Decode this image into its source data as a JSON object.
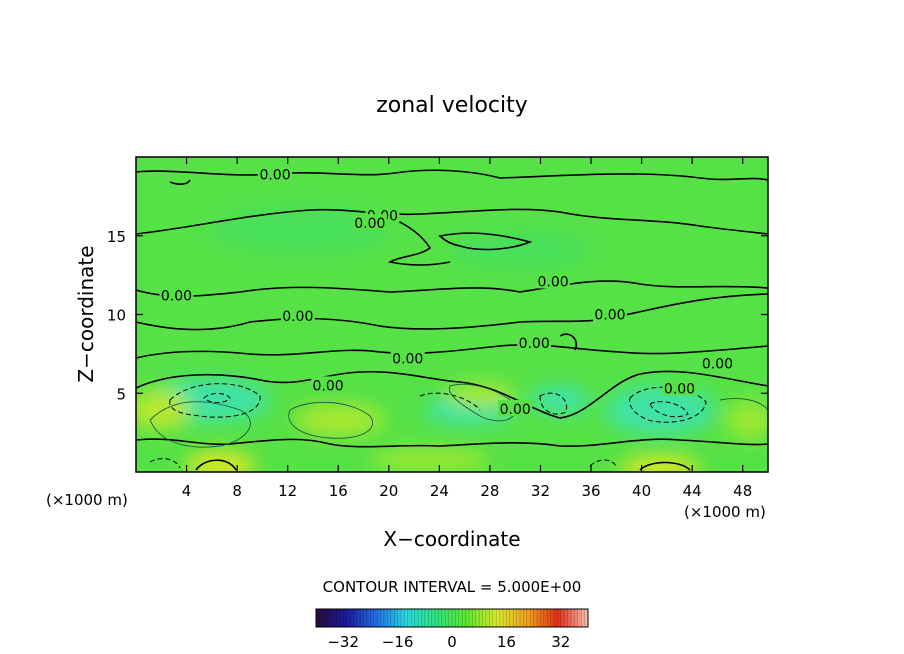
{
  "chart_data": {
    "type": "heatmap",
    "title": "zonal velocity",
    "xlabel": "X−coordinate",
    "ylabel": "Z−coordinate",
    "x_unit_left": "(×1000 m)",
    "x_unit_right": "(×1000 m)",
    "xlim": [
      0,
      50
    ],
    "ylim": [
      0,
      20
    ],
    "x_ticks": [
      4,
      8,
      12,
      16,
      20,
      24,
      28,
      32,
      36,
      40,
      44,
      48
    ],
    "y_ticks": [
      5,
      10,
      15
    ],
    "contour_interval_text": "CONTOUR INTERVAL = 5.000E+00",
    "contour_level_label": "0.00",
    "contour_labels": [
      {
        "x": 11,
        "y": 18.9
      },
      {
        "x": 19.5,
        "y": 16.3
      },
      {
        "x": 18.5,
        "y": 15.8
      },
      {
        "x": 33,
        "y": 12.1
      },
      {
        "x": 3.2,
        "y": 11.2
      },
      {
        "x": 12.8,
        "y": 9.9
      },
      {
        "x": 37.5,
        "y": 10.0
      },
      {
        "x": 31.5,
        "y": 8.2
      },
      {
        "x": 21.5,
        "y": 7.2
      },
      {
        "x": 46,
        "y": 6.9
      },
      {
        "x": 15.2,
        "y": 5.5
      },
      {
        "x": 43,
        "y": 5.3
      },
      {
        "x": 30,
        "y": 4.0
      }
    ],
    "colorbar": {
      "min": -40,
      "max": 40,
      "tick_values": [
        -32,
        -16,
        0,
        16,
        32
      ],
      "tick_labels": [
        "−32",
        "−16",
        "0",
        "16",
        "32"
      ]
    },
    "grid": false,
    "legend": "none",
    "colormap": [
      "#2b0a3d",
      "#1a1a9c",
      "#1f6fe0",
      "#2ad8e0",
      "#2fe27a",
      "#5ee830",
      "#d8e828",
      "#f0a020",
      "#e03018",
      "#f6c0b0"
    ],
    "field_description_hint_colors": {
      "background": "#56e146",
      "cyan_region": "#3fe3a6",
      "yellow_region": "#b8e830"
    }
  }
}
